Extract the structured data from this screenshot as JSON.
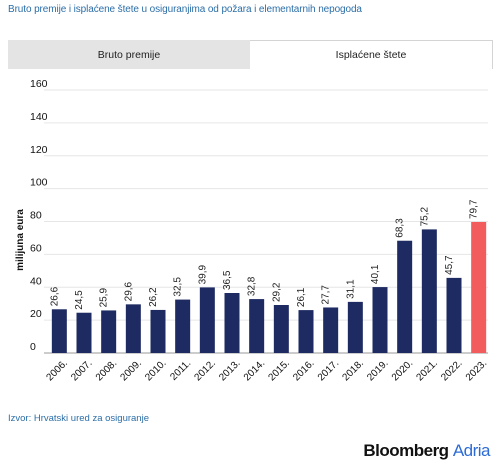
{
  "header": {
    "title": "Bruto premije i isplaćene štete u osiguranjima od požara i elementarnih nepogoda"
  },
  "tabs": [
    {
      "label": "Bruto premije",
      "active": false
    },
    {
      "label": "Isplaćene štete",
      "active": true
    }
  ],
  "chart_data": {
    "type": "bar",
    "title": "",
    "xlabel": "",
    "ylabel": "milijuna eura",
    "ylim": [
      0,
      160
    ],
    "yticks": [
      0,
      20,
      40,
      60,
      80,
      100,
      120,
      140,
      160
    ],
    "grid": true,
    "categories": [
      "2006.",
      "2007.",
      "2008.",
      "2009.",
      "2010.",
      "2011.",
      "2012.",
      "2013.",
      "2014.",
      "2015.",
      "2016.",
      "2017.",
      "2018.",
      "2019.",
      "2020.",
      "2021.",
      "2022.",
      "2023."
    ],
    "values": [
      26.6,
      24.5,
      25.9,
      29.6,
      26.2,
      32.5,
      39.9,
      36.5,
      32.8,
      29.2,
      26.1,
      27.7,
      31.1,
      40.1,
      68.3,
      75.2,
      45.7,
      79.7
    ],
    "data_labels": [
      "26,6",
      "24,5",
      "25,9",
      "29,6",
      "26,2",
      "32,5",
      "39,9",
      "36,5",
      "32,8",
      "29,2",
      "26,1",
      "27,7",
      "31,1",
      "40,1",
      "68,3",
      "75,2",
      "45,7",
      "79,7"
    ],
    "colors": {
      "default": "#1e2b63",
      "highlight": "#f25c5c"
    },
    "highlight_index": 17
  },
  "footer": {
    "source": "Izvor: Hrvatski ured za osiguranje",
    "logo_main": "Bloomberg",
    "logo_accent": "Adria"
  }
}
